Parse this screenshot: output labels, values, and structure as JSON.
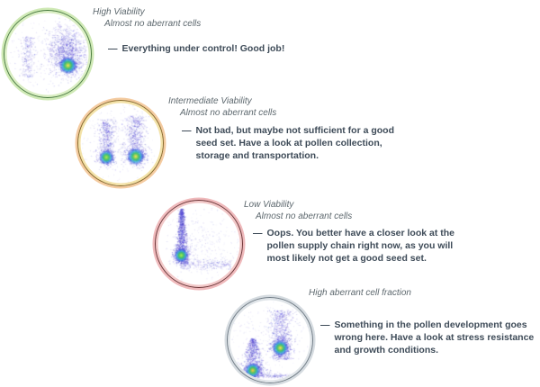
{
  "figure": {
    "background": "#ffffff",
    "label_color": "#5d686e",
    "annotation_color": "#3e4b58",
    "dot_base_color": "#4444c8"
  },
  "panels": [
    {
      "name": "high-viability",
      "label_line1": "High Viability",
      "label_line2": "Almost no aberrant cells",
      "dash": "—",
      "annotation": "Everything under control! Good job!",
      "ring": {
        "line": "#4a7d3e",
        "glow_outer": "#cfe9b5",
        "glow_inner": "#daeec3"
      },
      "chart_data": {
        "type": "scatter-density",
        "description": "Flow cytometry density plot: one dense viable-pollen cluster center-right, faint debris strip at left",
        "clusters": [
          {
            "shape": "gauss",
            "cx": 0.72,
            "cy": 0.5,
            "sx": 0.1,
            "sy": 0.12,
            "n": 900,
            "a": 1.1
          },
          {
            "shape": "gauss",
            "cx": 0.7,
            "cy": 0.32,
            "sx": 0.09,
            "sy": 0.09,
            "n": 260,
            "a": 0.8
          },
          {
            "shape": "gauss",
            "cx": 0.73,
            "cy": 0.62,
            "sx": 0.05,
            "sy": 0.04,
            "n": 520,
            "a": 1.3
          },
          {
            "shape": "strip",
            "cx": 0.27,
            "y1": 0.3,
            "y2": 0.76,
            "sx": 0.035,
            "n": 260,
            "a": 0.9
          },
          {
            "shape": "gauss",
            "cx": 0.5,
            "cy": 0.45,
            "sx": 0.26,
            "sy": 0.25,
            "n": 300,
            "a": 0.55
          }
        ],
        "hotspots": [
          {
            "x": 0.73,
            "y": 0.63,
            "r": 0.1,
            "core": "#ffe34d"
          }
        ]
      }
    },
    {
      "name": "intermediate-viability",
      "label_line1": "Intermediate Viability",
      "label_line2": "Almost no aberrant cells",
      "dash": "—",
      "annotation": "Not bad, but maybe  not sufficient for a good seed set. Have a look at pollen collection, storage and transportation.",
      "ring": {
        "line": "#8a6a2a",
        "glow_outer": "#f4cba0",
        "glow_inner": "#f3e2a8"
      },
      "chart_data": {
        "type": "scatter-density",
        "description": "Two vertical clusters (viable and dying pollen) with dense bottoms",
        "clusters": [
          {
            "shape": "strip",
            "cx": 0.34,
            "y1": 0.22,
            "y2": 0.72,
            "sx": 0.045,
            "n": 560,
            "a": 1.0
          },
          {
            "shape": "gauss",
            "cx": 0.335,
            "cy": 0.665,
            "sx": 0.05,
            "sy": 0.045,
            "n": 380,
            "a": 1.2
          },
          {
            "shape": "strip",
            "cx": 0.66,
            "y1": 0.18,
            "y2": 0.7,
            "sx": 0.06,
            "n": 650,
            "a": 1.0
          },
          {
            "shape": "gauss",
            "cx": 0.675,
            "cy": 0.655,
            "sx": 0.06,
            "sy": 0.05,
            "n": 460,
            "a": 1.2
          },
          {
            "shape": "gauss",
            "cx": 0.5,
            "cy": 0.45,
            "sx": 0.25,
            "sy": 0.25,
            "n": 300,
            "a": 0.55
          }
        ],
        "hotspots": [
          {
            "x": 0.335,
            "y": 0.665,
            "r": 0.085,
            "core": "#b8e94c"
          },
          {
            "x": 0.675,
            "y": 0.655,
            "r": 0.1,
            "core": "#ffe34d"
          }
        ]
      }
    },
    {
      "name": "low-viability",
      "label_line1": "Low Viability",
      "label_line2": "Almost no aberrant cells",
      "dash": "—",
      "annotation": "Oops. You better have a closer look at the pollen supply chain right now, as you will most likely not get a good seed set.",
      "ring": {
        "line": "#6f3336",
        "glow_outer": "#efb9bb",
        "glow_inner": "#f2c8c8"
      },
      "chart_data": {
        "type": "scatter-density",
        "description": "Single narrow dense vertical strip (dead pollen) with horizontal debris band at bottom",
        "clusters": [
          {
            "shape": "tri",
            "cx": 0.3,
            "y1": 0.1,
            "y2": 0.72,
            "sx1": 0.012,
            "sx2": 0.045,
            "n": 1150,
            "a": 1.2
          },
          {
            "shape": "gauss",
            "cx": 0.3,
            "cy": 0.62,
            "sx": 0.04,
            "sy": 0.05,
            "n": 420,
            "a": 1.3
          },
          {
            "shape": "hline",
            "x1": 0.28,
            "x2": 0.86,
            "cy": 0.73,
            "sy": 0.03,
            "n": 300,
            "a": 0.8
          },
          {
            "shape": "gauss",
            "cx": 0.55,
            "cy": 0.48,
            "sx": 0.22,
            "sy": 0.18,
            "n": 320,
            "a": 0.5
          }
        ],
        "hotspots": [
          {
            "x": 0.3,
            "y": 0.63,
            "r": 0.08,
            "core": "#a5ef4f"
          }
        ]
      }
    },
    {
      "name": "high-aberrant-cell-fraction",
      "label_line1": "High aberrant cell fraction",
      "label_line2": "",
      "dash": "—",
      "annotation": "Something in the pollen development goes wrong here. Have a look at stress resistance and growth conditions.",
      "ring": {
        "line": "#707c86",
        "glow_outer": "#d5dbe0",
        "glow_inner": "#dfe4e8"
      },
      "chart_data": {
        "type": "scatter-density",
        "description": "Aberrant triangular cluster bottom-left plus viable vertical cluster right, debris line along bottom",
        "clusters": [
          {
            "shape": "tri",
            "cx": 0.3,
            "y1": 0.48,
            "y2": 0.88,
            "sx1": 0.015,
            "sx2": 0.095,
            "n": 720,
            "a": 1.1
          },
          {
            "shape": "gauss",
            "cx": 0.3,
            "cy": 0.84,
            "sx": 0.05,
            "sy": 0.035,
            "n": 420,
            "a": 1.3
          },
          {
            "shape": "strip",
            "cx": 0.62,
            "y1": 0.15,
            "y2": 0.72,
            "sx": 0.06,
            "n": 820,
            "a": 1.0
          },
          {
            "shape": "gauss",
            "cx": 0.62,
            "cy": 0.58,
            "sx": 0.055,
            "sy": 0.05,
            "n": 470,
            "a": 1.2
          },
          {
            "shape": "hline",
            "x1": 0.18,
            "x2": 0.8,
            "cy": 0.91,
            "sy": 0.012,
            "n": 280,
            "a": 0.9
          },
          {
            "shape": "gauss",
            "cx": 0.5,
            "cy": 0.4,
            "sx": 0.25,
            "sy": 0.22,
            "n": 260,
            "a": 0.5
          }
        ],
        "hotspots": [
          {
            "x": 0.3,
            "y": 0.85,
            "r": 0.09,
            "core": "#ffc83d"
          },
          {
            "x": 0.62,
            "y": 0.59,
            "r": 0.095,
            "core": "#ffe34d"
          }
        ]
      }
    }
  ]
}
